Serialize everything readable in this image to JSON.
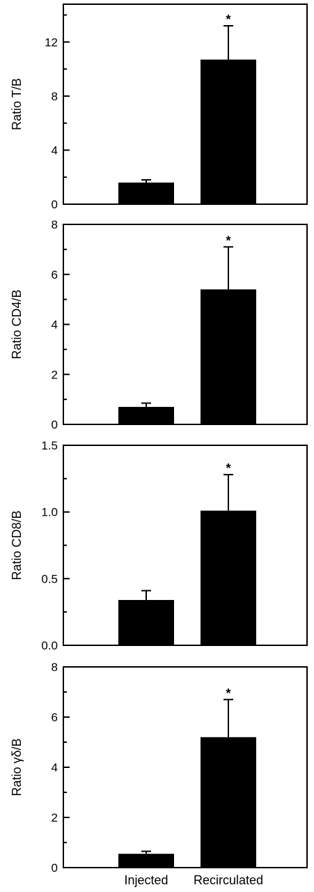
{
  "chart_data": [
    {
      "type": "bar",
      "categories": [
        "Injected",
        "Recirculated"
      ],
      "values": [
        1.6,
        10.7
      ],
      "errors": [
        0.2,
        2.5
      ],
      "significance": [
        "",
        "*"
      ],
      "ylabel": "Ratio T/B",
      "xlabel": "",
      "ylim": [
        0,
        14.8
      ],
      "yticks": [
        0,
        4,
        8,
        12
      ],
      "ytick_labels": [
        "0",
        "4",
        "8",
        "12"
      ],
      "grid": false,
      "bar_color": "#000000"
    },
    {
      "type": "bar",
      "categories": [
        "Injected",
        "Recirculated"
      ],
      "values": [
        0.7,
        5.4
      ],
      "errors": [
        0.15,
        1.7
      ],
      "significance": [
        "",
        "*"
      ],
      "ylabel": "Ratio CD4/B",
      "xlabel": "",
      "ylim": [
        0,
        8
      ],
      "yticks": [
        0,
        2,
        4,
        6,
        8
      ],
      "ytick_labels": [
        "0",
        "2",
        "4",
        "6",
        "8"
      ],
      "grid": false,
      "bar_color": "#000000"
    },
    {
      "type": "bar",
      "categories": [
        "Injected",
        "Recirculated"
      ],
      "values": [
        0.34,
        1.01
      ],
      "errors": [
        0.07,
        0.27
      ],
      "significance": [
        "",
        "*"
      ],
      "ylabel": "Ratio CD8/B",
      "xlabel": "",
      "ylim": [
        0,
        1.5
      ],
      "yticks": [
        0,
        0.5,
        1.0,
        1.5
      ],
      "ytick_labels": [
        "0.0",
        "0.5",
        "1.0",
        "1.5"
      ],
      "grid": false,
      "bar_color": "#000000"
    },
    {
      "type": "bar",
      "categories": [
        "Injected",
        "Recirculated"
      ],
      "values": [
        0.55,
        5.2
      ],
      "errors": [
        0.1,
        1.5
      ],
      "significance": [
        "",
        "*"
      ],
      "ylabel": "Ratio γδ/B",
      "xlabel": "",
      "ylim": [
        0,
        8
      ],
      "yticks": [
        0,
        2,
        4,
        6,
        8
      ],
      "ytick_labels": [
        "0",
        "2",
        "4",
        "6",
        "8"
      ],
      "grid": false,
      "bar_color": "#000000"
    }
  ]
}
